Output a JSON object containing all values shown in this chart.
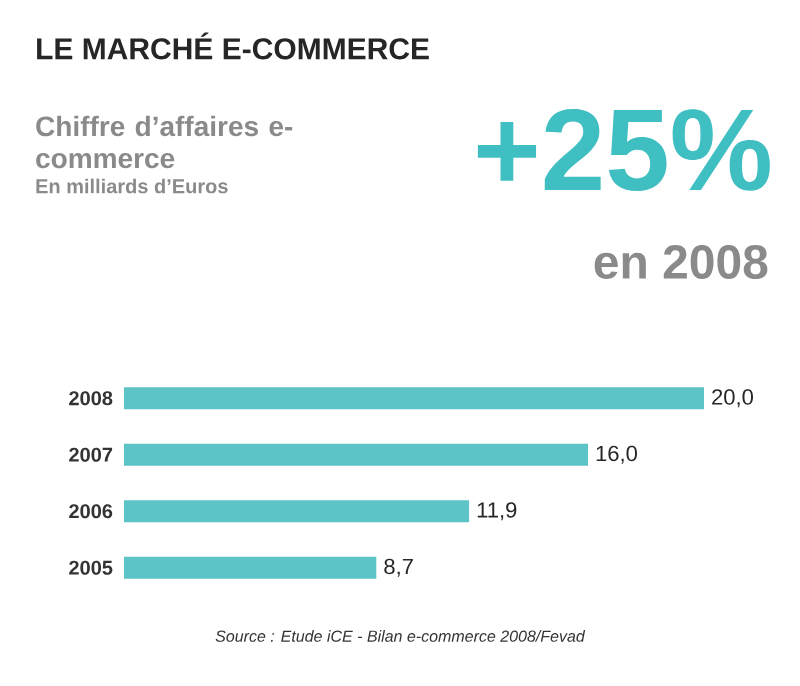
{
  "chart_data": {
    "type": "bar",
    "orientation": "horizontal",
    "title": "LE MARCHÉ E-COMMERCE",
    "subtitle": "Chiffre d’affaires e-commerce",
    "annotations": [
      "En milliards d’Euros",
      "+25%",
      "en 2008",
      "Source : Etude iCE - Bilan e-commerce 2008/Fevad"
    ],
    "categories": [
      "2008",
      "2007",
      "2006",
      "2005"
    ],
    "values": [
      20.0,
      16.0,
      11.9,
      8.7
    ],
    "value_labels": [
      "20,0",
      "16,0",
      "11,9",
      "8,7"
    ],
    "color": "#5cc3c6"
  }
}
